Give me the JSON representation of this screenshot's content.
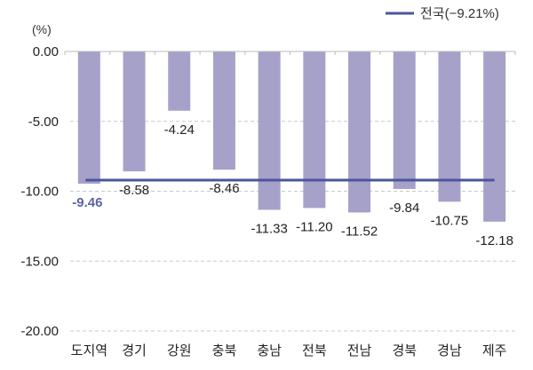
{
  "chart_data": {
    "type": "bar",
    "unit_label": "(%)",
    "categories": [
      "도지역",
      "경기",
      "강원",
      "충북",
      "충남",
      "전북",
      "전남",
      "경북",
      "경남",
      "제주"
    ],
    "values": [
      -9.46,
      -8.58,
      -4.24,
      -8.46,
      -11.33,
      -11.2,
      -11.52,
      -9.84,
      -10.75,
      -12.18
    ],
    "value_labels": [
      "-9.46",
      "-8.58",
      "-4.24",
      "-8.46",
      "-11.33",
      "-11.20",
      "-11.52",
      "-9.84",
      "-10.75",
      "-12.18"
    ],
    "reference_line": {
      "name": "전국(−9.21%)",
      "value": -9.21
    },
    "ylim": [
      -20,
      0
    ],
    "yticks": [
      0,
      -5,
      -10,
      -15,
      -20
    ],
    "ytick_labels": [
      "0.00",
      "-5.00",
      "-10.00",
      "-15.00",
      "-20.00"
    ],
    "grid": "dashed horizontal",
    "legend": "top-right",
    "colors": {
      "bar": "#a5a1c9",
      "line": "#4b559c",
      "highlight_label": "#5b62a8",
      "label": "#222222",
      "grid": "#c8c8c8"
    }
  }
}
